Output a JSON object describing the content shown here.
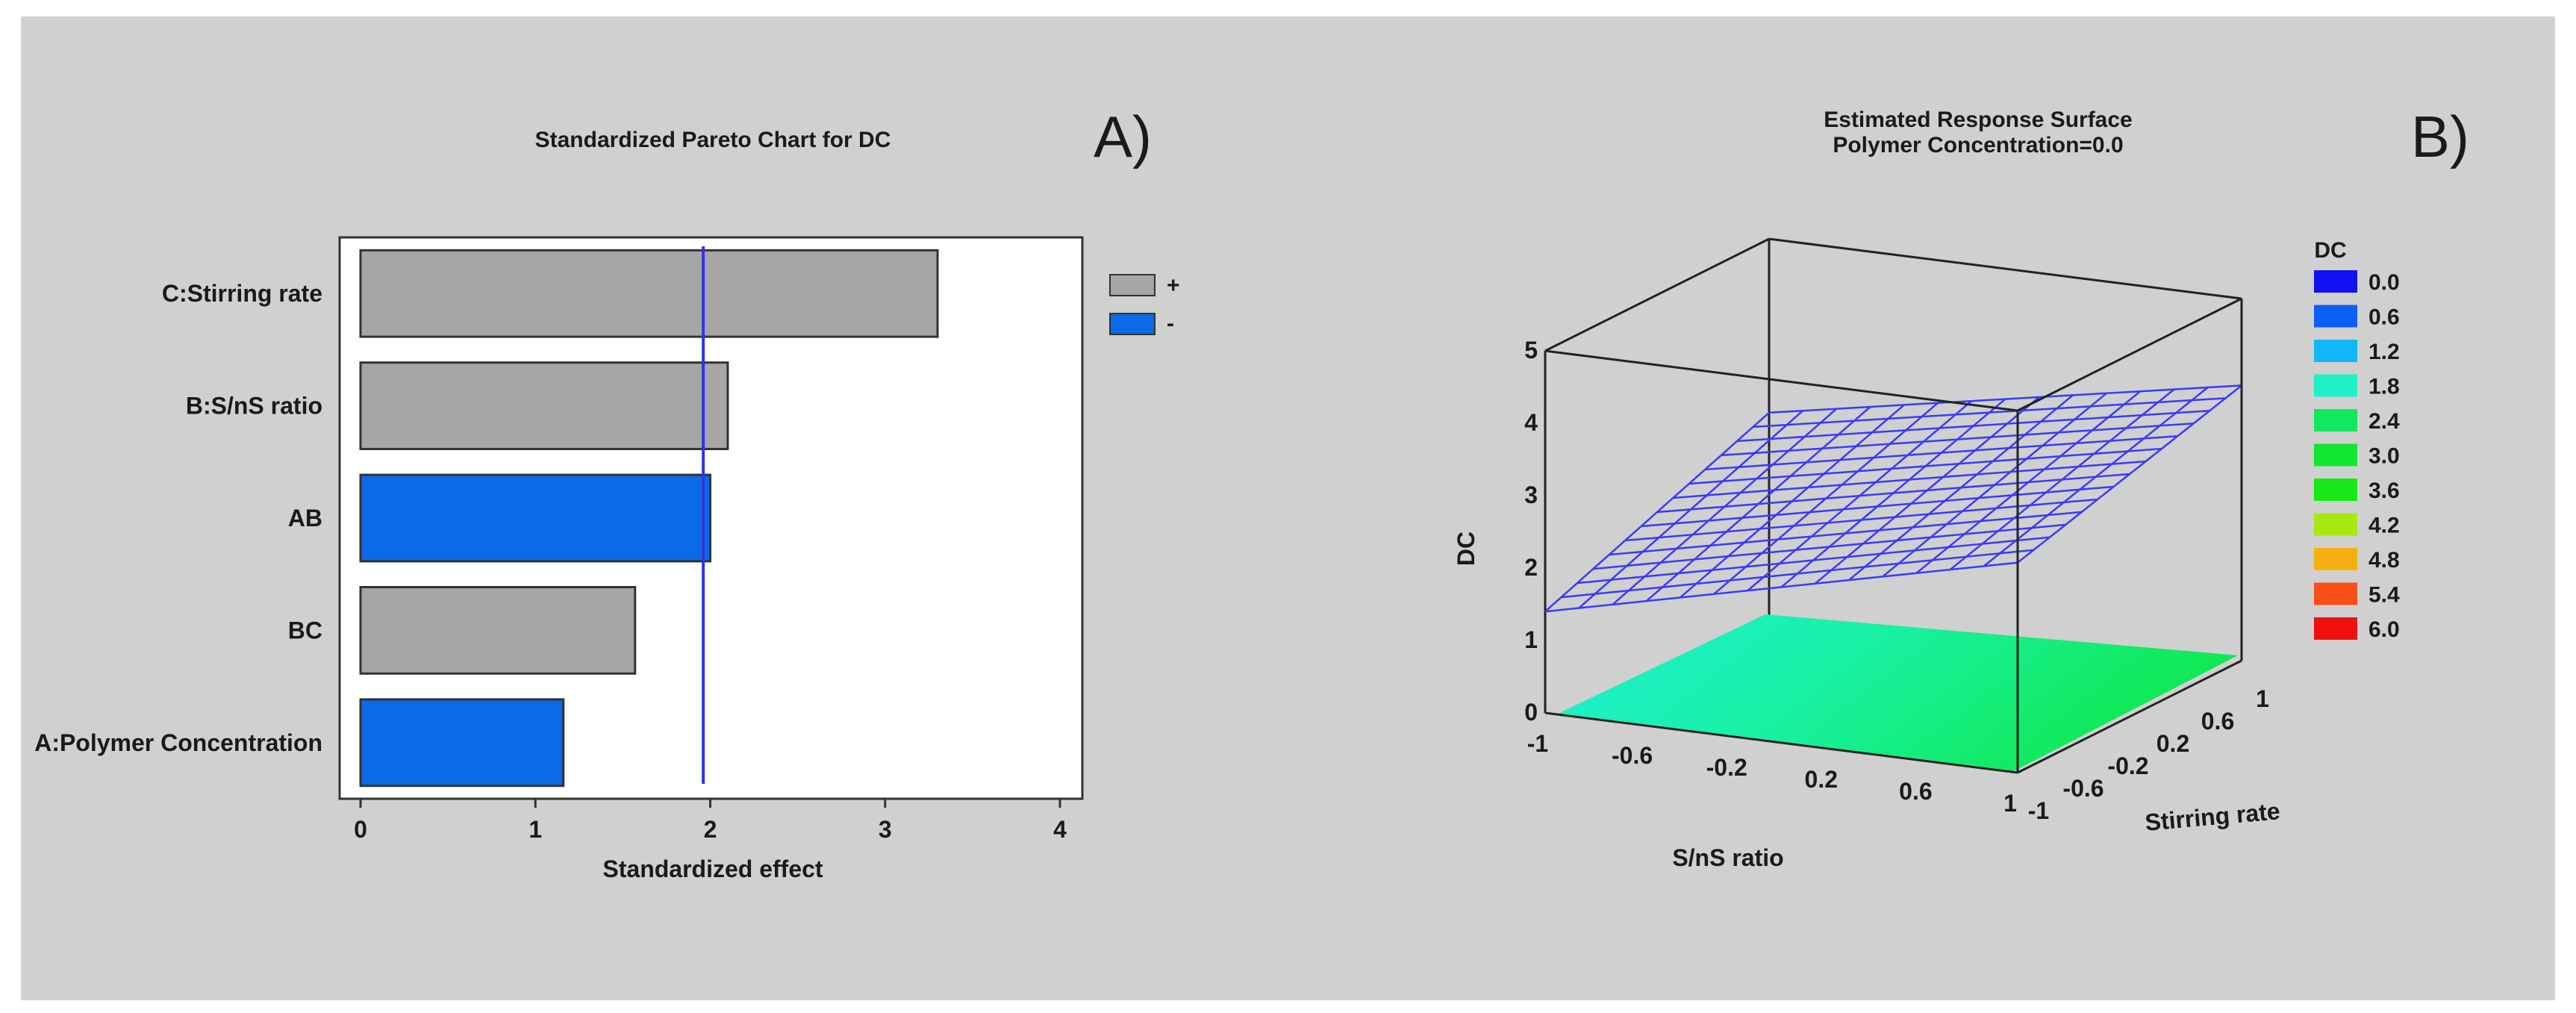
{
  "panel_labels": {
    "a": "A)",
    "b": "B)"
  },
  "colors": {
    "positive_bar": "#a6a6a6",
    "negative_bar": "#0a6ae8",
    "reference_line": "#3333dd",
    "mesh": "#3a3aff"
  },
  "chart_data": [
    {
      "type": "bar",
      "orientation": "horizontal",
      "title": "Standardized Pareto Chart for DC",
      "xlabel": "Standardized effect",
      "categories": [
        "C:Stirring rate",
        "B:S/nS ratio",
        "AB",
        "BC",
        "A:Polymer Concentration"
      ],
      "values": [
        3.3,
        2.1,
        2.0,
        1.57,
        1.16
      ],
      "signs": [
        "+",
        "+",
        "-",
        "+",
        "-"
      ],
      "xlim": [
        0,
        4
      ],
      "xticks": [
        "0",
        "1",
        "2",
        "3",
        "4"
      ],
      "reference_line": 1.96,
      "legend": [
        {
          "label": "+",
          "color": "#a6a6a6"
        },
        {
          "label": "-",
          "color": "#0a6ae8"
        }
      ],
      "legend_position": "right"
    },
    {
      "type": "surface",
      "title": "Estimated Response Surface",
      "subtitle": "Polymer Concentration=0.0",
      "xlabel": "S/nS ratio",
      "ylabel": "Stirring rate",
      "zlabel": "DC",
      "xticks": [
        "-1",
        "-0.6",
        "-0.2",
        "0.2",
        "0.6",
        "1"
      ],
      "yticks": [
        "-1",
        "-0.6",
        "-0.2",
        "0.2",
        "0.6",
        "1"
      ],
      "zticks": [
        "0",
        "1",
        "2",
        "3",
        "4",
        "5"
      ],
      "xlim": [
        -1,
        1
      ],
      "ylim": [
        -1,
        1
      ],
      "zlim": [
        0,
        5
      ],
      "surface_z_corners": {
        "x-1_y-1": 1.4,
        "x1_y-1": 2.9,
        "x-1_y1": 2.6,
        "x1_y1": 3.8
      },
      "legend_title": "DC",
      "legend": [
        {
          "label": "0.0",
          "color": "#1010f0"
        },
        {
          "label": "0.6",
          "color": "#0c5ef8"
        },
        {
          "label": "1.2",
          "color": "#10b8f8"
        },
        {
          "label": "1.8",
          "color": "#20f0c8"
        },
        {
          "label": "2.4",
          "color": "#10e860"
        },
        {
          "label": "3.0",
          "color": "#10e830"
        },
        {
          "label": "3.6",
          "color": "#18e818"
        },
        {
          "label": "4.2",
          "color": "#a8e810"
        },
        {
          "label": "4.8",
          "color": "#f8b010"
        },
        {
          "label": "5.4",
          "color": "#f85018"
        },
        {
          "label": "6.0",
          "color": "#f01010"
        }
      ],
      "legend_position": "right"
    }
  ]
}
